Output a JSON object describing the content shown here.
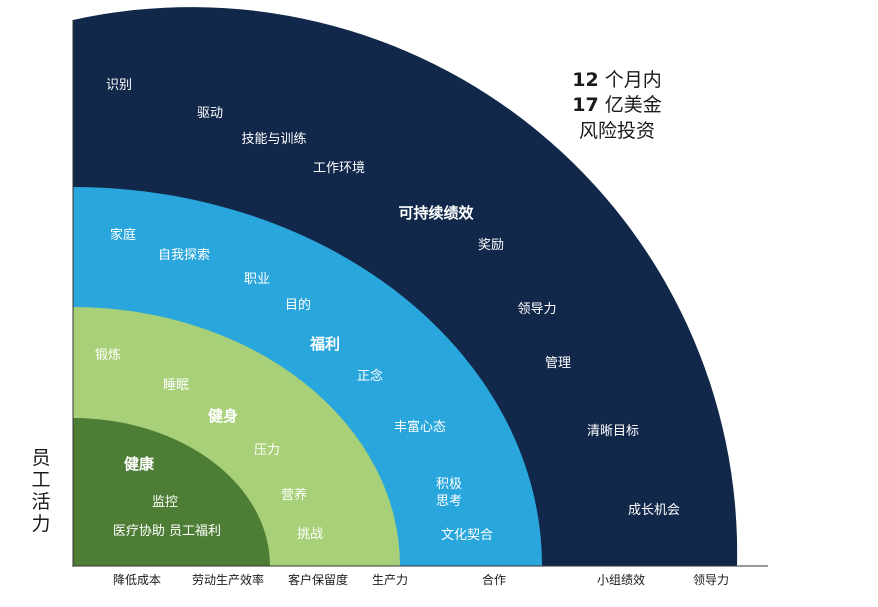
{
  "colors": {
    "navy": "#12284a",
    "sky": "#29a6dc",
    "light_green": "#a8d078",
    "dark_green": "#4e7d35",
    "axis": "#333333"
  },
  "headline": {
    "line1_num": "12",
    "line1_text": " 个月内",
    "line2_num": "17",
    "line2_text": " 亿美金",
    "line3": "风险投资"
  },
  "y_axis_label": [
    "员",
    "工",
    "活",
    "力"
  ],
  "x_axis_labels": [
    "降低成本",
    "劳动生产效率",
    "客户保留度",
    "生产力",
    "合作",
    "小组绩效",
    "领导力"
  ],
  "rings": {
    "sustainable_performance": {
      "title": "可持续绩效",
      "items": [
        "识别",
        "驱动",
        "技能与训练",
        "工作环境",
        "奖励",
        "领导力",
        "管理",
        "清晰目标",
        "成长机会"
      ]
    },
    "wellbeing": {
      "title": "福利",
      "items": [
        "家庭",
        "自我探索",
        "职业",
        "目的",
        "正念",
        "丰富心态",
        "积极",
        "思考",
        "文化契合"
      ]
    },
    "fitness": {
      "title": "健身",
      "items": [
        "锻炼",
        "睡眠",
        "压力",
        "营养",
        "挑战"
      ]
    },
    "health": {
      "title": "健康",
      "items": [
        "监控",
        "医疗协助 员工福利"
      ]
    }
  }
}
